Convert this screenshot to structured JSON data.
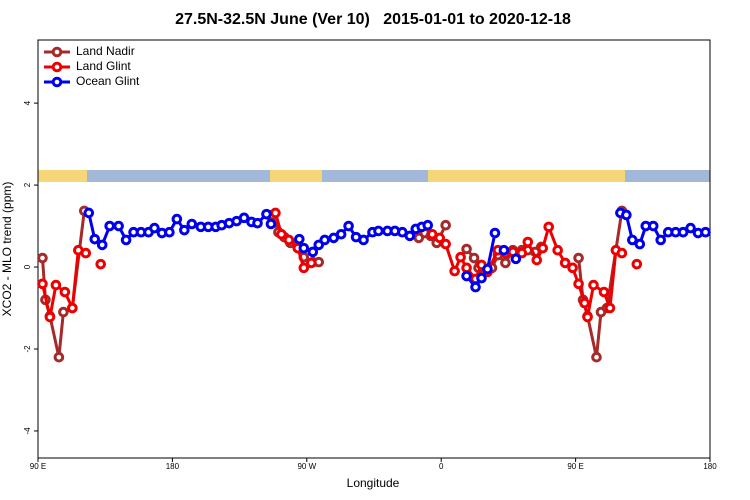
{
  "chart_data": {
    "type": "line",
    "title": "27.5N-32.5N June (Ver 10)   2015-01-01 to 2020-12-18",
    "x_label": "Longitude",
    "y_label": "XCO2 - MLO trend (ppm)",
    "xlim": [
      90,
      540
    ],
    "ylim": [
      -4.66,
      5.54
    ],
    "xticks": [
      {
        "value": 90,
        "label": "90 E"
      },
      {
        "value": 180,
        "label": "180"
      },
      {
        "value": 270,
        "label": "90 W"
      },
      {
        "value": 360,
        "label": "0"
      },
      {
        "value": 450,
        "label": "90 E"
      },
      {
        "value": 540,
        "label": "180"
      }
    ],
    "yticks": [
      -4,
      -2,
      0,
      2,
      4
    ],
    "legend": "top-left",
    "series": [
      {
        "name": "Land Nadir",
        "color": "#a52a2a",
        "x": [
          93,
          95,
          98,
          104,
          107,
          113,
          121,
          130,
          247,
          251,
          255,
          259,
          264,
          268,
          274,
          278,
          300,
          345,
          349,
          353,
          357,
          363,
          370,
          377,
          382,
          385,
          389,
          394,
          398,
          403,
          408,
          414,
          418,
          423,
          427,
          440,
          452,
          455,
          458,
          464,
          467,
          471,
          481
        ],
        "values": [
          0.22,
          -0.8,
          -1.2,
          -2.2,
          -1.1,
          -1.0,
          1.37,
          null,
          1.27,
          0.85,
          0.73,
          0.59,
          0.46,
          0.24,
          0.12,
          0.12,
          null,
          0.71,
          0.83,
          0.76,
          0.59,
          1.02,
          null,
          0.44,
          0.22,
          -0.02,
          -0.12,
          -0.02,
          0.29,
          0.1,
          0.41,
          0.41,
          0.41,
          0.37,
          0.49,
          null,
          0.22,
          -0.8,
          -1.2,
          -2.2,
          -1.1,
          -1.0,
          1.37
        ]
      },
      {
        "name": "Land Glint",
        "color": "#ee0000",
        "x": [
          93,
          98,
          102,
          108,
          113,
          117,
          122,
          127,
          132,
          200,
          249,
          253,
          258,
          264,
          268,
          273,
          310,
          354,
          359,
          363,
          369,
          373,
          377,
          383,
          387,
          391,
          398,
          403,
          408,
          414,
          418,
          424,
          428,
          432,
          438,
          443,
          448,
          452,
          456,
          458,
          462,
          469,
          473,
          477,
          481,
          486,
          491
        ],
        "values": [
          -0.41,
          -1.22,
          -0.44,
          -0.61,
          -1.0,
          0.41,
          0.34,
          null,
          0.07,
          null,
          1.32,
          0.8,
          0.66,
          0.46,
          -0.02,
          0.1,
          null,
          0.8,
          0.71,
          0.56,
          -0.1,
          0.24,
          -0.02,
          -0.29,
          0.05,
          -0.12,
          0.41,
          0.34,
          0.37,
          0.34,
          0.61,
          0.17,
          0.46,
          0.98,
          0.41,
          0.1,
          -0.02,
          -0.41,
          -0.88,
          -1.22,
          -0.44,
          -0.61,
          -1.0,
          0.41,
          0.34,
          null,
          0.07
        ]
      },
      {
        "name": "Ocean Glint",
        "color": "#0000ee",
        "x": [
          124,
          128,
          133,
          138,
          144,
          149,
          154,
          159,
          164,
          168,
          173,
          178,
          183,
          188,
          193,
          199,
          204,
          209,
          213,
          218,
          223,
          228,
          233,
          237,
          243,
          246,
          255,
          265,
          268,
          274,
          278,
          282,
          288,
          293,
          298,
          303,
          308,
          314,
          318,
          324,
          329,
          334,
          339,
          343,
          347,
          351,
          365,
          377,
          383,
          387,
          391,
          396,
          399,
          402,
          406,
          410,
          450,
          480,
          484,
          488,
          493,
          497,
          502,
          507,
          512,
          517,
          522,
          527,
          532,
          537
        ],
        "values": [
          1.32,
          0.68,
          0.54,
          1.0,
          1.0,
          0.66,
          0.85,
          0.85,
          0.85,
          0.95,
          0.83,
          0.85,
          1.17,
          0.9,
          1.05,
          0.98,
          0.98,
          0.98,
          1.02,
          1.07,
          1.12,
          1.2,
          1.1,
          1.07,
          1.29,
          1.05,
          null,
          0.68,
          0.46,
          0.37,
          0.54,
          0.66,
          0.71,
          0.8,
          1.0,
          0.73,
          0.66,
          0.85,
          0.88,
          0.88,
          0.88,
          0.85,
          0.76,
          0.93,
          0.98,
          1.02,
          null,
          -0.22,
          -0.49,
          -0.27,
          -0.05,
          0.83,
          null,
          0.41,
          null,
          0.2,
          null,
          1.32,
          1.27,
          0.66,
          0.56,
          1.0,
          1.0,
          0.66,
          0.85,
          0.85,
          0.85,
          0.95,
          0.83,
          0.85
        ]
      }
    ]
  }
}
